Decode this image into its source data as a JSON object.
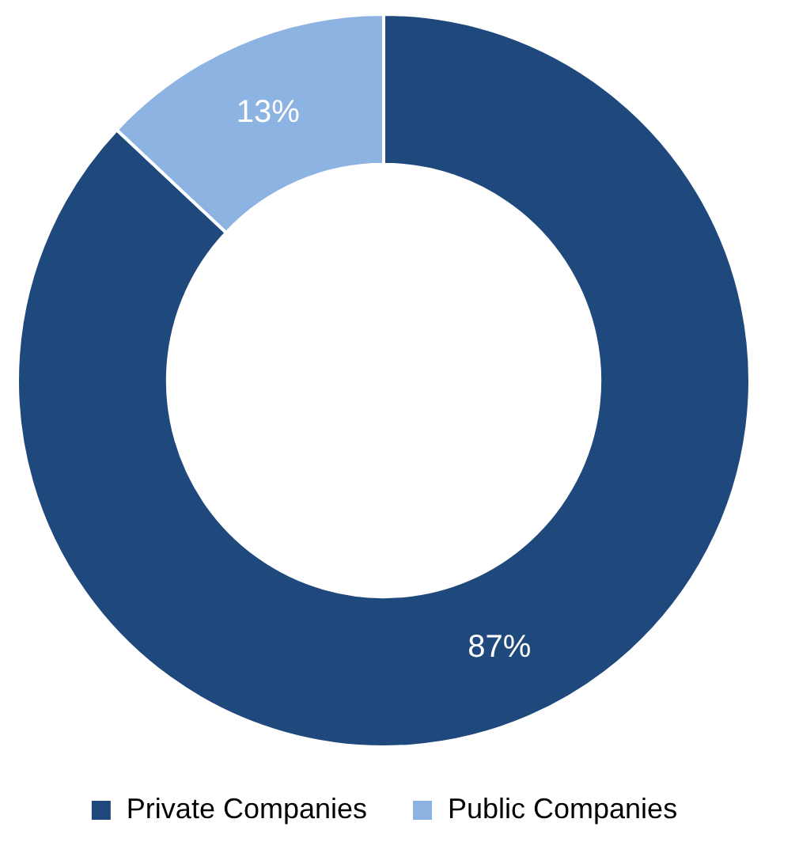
{
  "chart_data": {
    "type": "donut",
    "categories": [
      "Private Companies",
      "Public Companies"
    ],
    "values": [
      87,
      13
    ],
    "colors": [
      "#1f497d",
      "#8db3e2"
    ],
    "value_labels": [
      "87%",
      "13%"
    ],
    "legend": "bottom"
  }
}
